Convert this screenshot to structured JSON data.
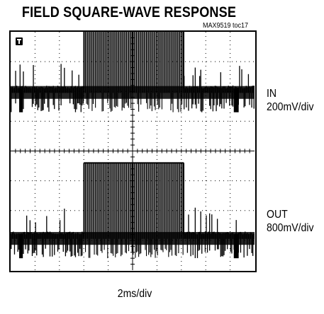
{
  "chart_data": {
    "type": "line",
    "title": "FIELD SQUARE-WAVE RESPONSE",
    "figure_id": "MAX9519 toc17",
    "grid": true,
    "divisions": {
      "x": 10,
      "y": 8
    },
    "x_scale": "2ms/div",
    "x_range_div": [
      0,
      10
    ],
    "y_range_div": [
      0,
      8
    ],
    "square_wave": {
      "high_start_div": 3.0,
      "high_end_div": 7.1
    },
    "series": [
      {
        "name": "IN",
        "scale": "200mV/div",
        "low_level_div": 6.1,
        "high_level_div": 8.5,
        "sync_depth_div": 0.8
      },
      {
        "name": "OUT",
        "scale": "800mV/div",
        "low_level_div": 1.2,
        "high_level_div": 3.6,
        "sync_depth_div": 0.8
      }
    ]
  },
  "labels": {
    "title": "FIELD SQUARE-WAVE RESPONSE",
    "toc": "MAX9519 toc17",
    "in_name": "IN",
    "in_scale": "200mV/div",
    "out_name": "OUT",
    "out_scale": "800mV/div",
    "x_scale": "2ms/div"
  }
}
